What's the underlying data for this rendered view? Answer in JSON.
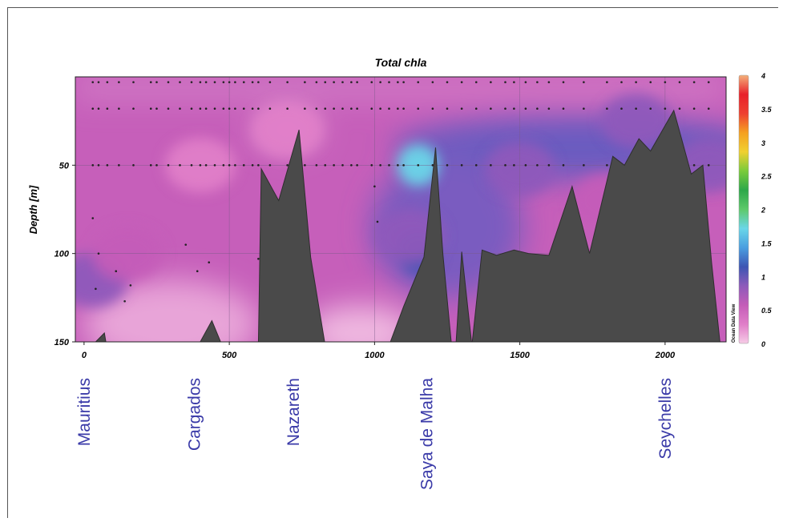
{
  "chart_data": {
    "type": "heatmap",
    "title": "Total chla",
    "ylabel": "Depth [m]",
    "xlabel": "",
    "xlim": [
      -30,
      2210
    ],
    "ylim": [
      150,
      0
    ],
    "x_ticks": [
      "0",
      "500",
      "1000",
      "1500",
      "2000"
    ],
    "y_ticks": [
      "50",
      "100",
      "150"
    ],
    "colorbar": {
      "min": 0,
      "max": 4,
      "ticks": [
        "0",
        "0.5",
        "1",
        "1.5",
        "2",
        "2.5",
        "3",
        "3.5",
        "4"
      ],
      "stops": [
        "#f6cce6",
        "#e07ec8",
        "#c45cb8",
        "#8e5aba",
        "#3d55b3",
        "#4a9ee0",
        "#6ad6e8",
        "#5dc96a",
        "#2da84a",
        "#7acb3a",
        "#f0d030",
        "#f5a020",
        "#ee4030",
        "#e8202a",
        "#f4b07a"
      ],
      "watermark": "Ocean Data View"
    },
    "field_features": [
      {
        "x": 30,
        "depth": 115,
        "chla": 0.8
      },
      {
        "x": 150,
        "depth": 100,
        "chla": 0.6
      },
      {
        "x": 1150,
        "depth": 50,
        "chla": 1.8
      },
      {
        "x": 1150,
        "depth": 100,
        "chla": 1.1
      },
      {
        "x": 1120,
        "depth": 90,
        "chla": 0.9
      },
      {
        "x": 1500,
        "depth": 52,
        "chla": 0.8
      },
      {
        "x": 1900,
        "depth": 25,
        "chla": 0.8
      },
      {
        "x": 2150,
        "depth": 50,
        "chla": 0.8
      },
      {
        "x": 1800,
        "depth": 70,
        "chla": 0.6
      },
      {
        "x": 700,
        "depth": 30,
        "chla": 0.15
      },
      {
        "x": 400,
        "depth": 50,
        "chla": 0.3
      }
    ],
    "bathymetry": [
      [
        -30,
        150
      ],
      [
        40,
        150
      ],
      [
        70,
        145
      ],
      [
        75,
        150
      ],
      [
        400,
        150
      ],
      [
        440,
        138
      ],
      [
        470,
        150
      ],
      [
        540,
        150
      ],
      [
        600,
        152
      ],
      [
        610,
        52
      ],
      [
        670,
        70
      ],
      [
        740,
        30
      ],
      [
        780,
        102
      ],
      [
        830,
        152
      ],
      [
        1050,
        152
      ],
      [
        1100,
        130
      ],
      [
        1170,
        102
      ],
      [
        1210,
        40
      ],
      [
        1235,
        100
      ],
      [
        1265,
        152
      ],
      [
        1280,
        152
      ],
      [
        1300,
        99
      ],
      [
        1335,
        152
      ],
      [
        1370,
        98
      ],
      [
        1420,
        101
      ],
      [
        1480,
        98
      ],
      [
        1530,
        100
      ],
      [
        1600,
        101
      ],
      [
        1680,
        62
      ],
      [
        1740,
        100
      ],
      [
        1820,
        45
      ],
      [
        1860,
        50
      ],
      [
        1910,
        35
      ],
      [
        1950,
        42
      ],
      [
        2030,
        19
      ],
      [
        2090,
        55
      ],
      [
        2130,
        50
      ],
      [
        2160,
        105
      ],
      [
        2190,
        152
      ],
      [
        2210,
        152
      ]
    ],
    "sample_depths": [
      3,
      18,
      50
    ],
    "sample_x": [
      30,
      50,
      80,
      120,
      170,
      230,
      250,
      290,
      330,
      370,
      400,
      420,
      450,
      480,
      500,
      520,
      550,
      580,
      600,
      640,
      700,
      760,
      800,
      830,
      860,
      890,
      920,
      940,
      990,
      1020,
      1050,
      1080,
      1100,
      1150,
      1200,
      1250,
      1300,
      1350,
      1400,
      1450,
      1480,
      1520,
      1560,
      1600,
      1650,
      1720,
      1800,
      1850,
      1900,
      1950,
      2000,
      2050,
      2100,
      2150
    ],
    "deep_samples": [
      [
        30,
        80
      ],
      [
        40,
        120
      ],
      [
        50,
        100
      ],
      [
        110,
        110
      ],
      [
        140,
        127
      ],
      [
        160,
        118
      ],
      [
        350,
        95
      ],
      [
        390,
        110
      ],
      [
        430,
        105
      ],
      [
        600,
        103
      ],
      [
        1000,
        62
      ],
      [
        1010,
        82
      ]
    ]
  },
  "station_labels": [
    {
      "name": "Mauritius",
      "x": 0
    },
    {
      "name": "Cargados",
      "x": 380
    },
    {
      "name": "Nazareth",
      "x": 720
    },
    {
      "name": "Saya de Malha",
      "x": 1180
    },
    {
      "name": "Seychelles",
      "x": 2000
    }
  ]
}
